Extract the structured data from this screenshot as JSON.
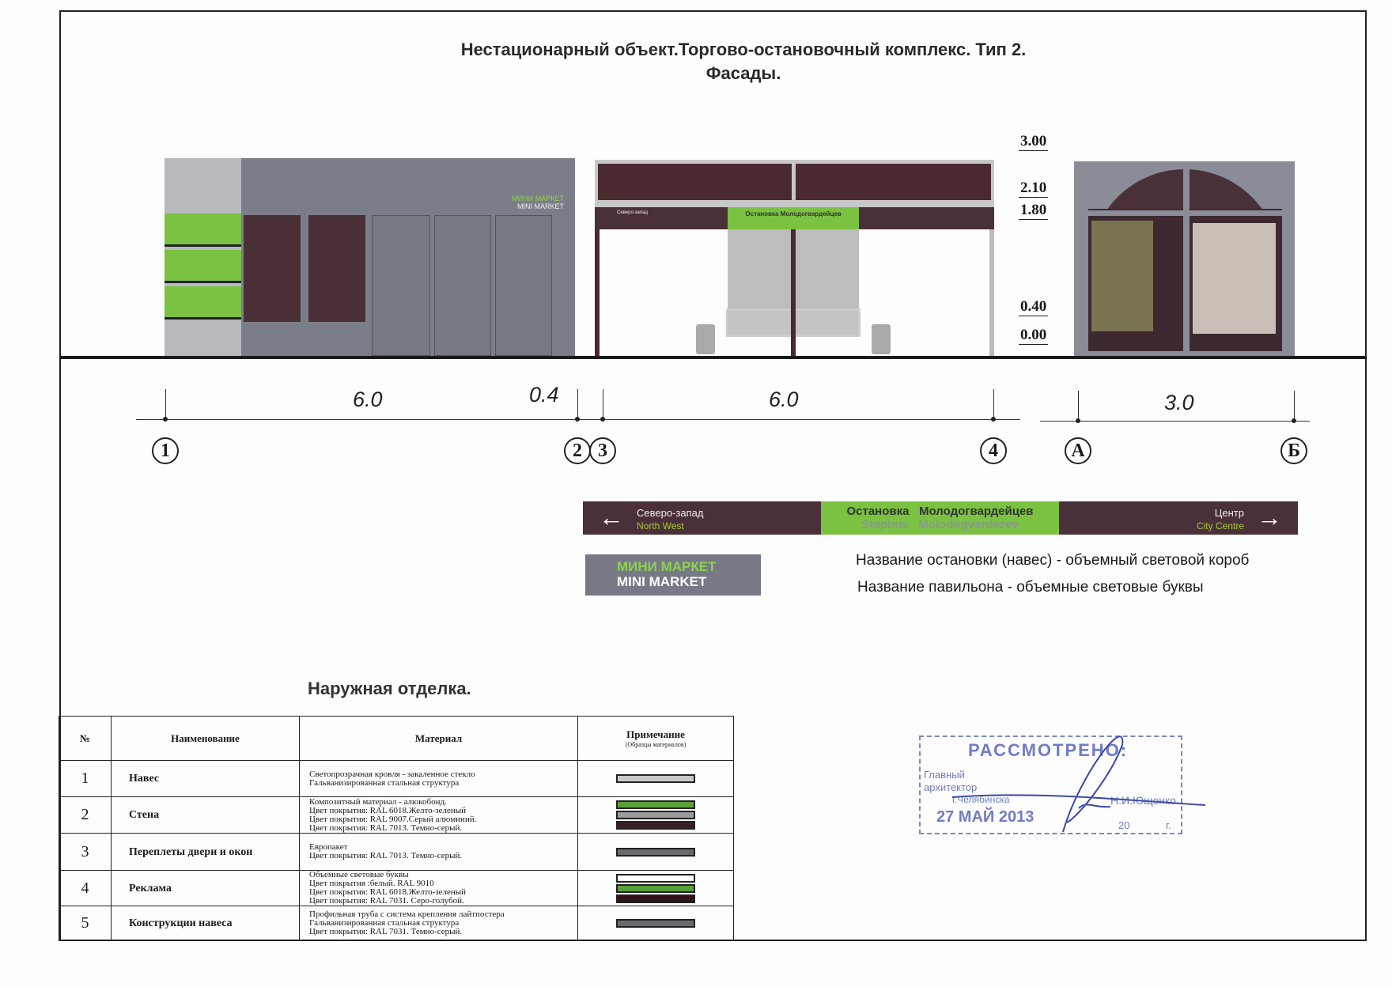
{
  "title": {
    "line1": "Нестационарный объект.Торгово-остановочный комплекс. Тип 2.",
    "line2": "Фасады."
  },
  "shop_sign": {
    "ru": "МИНИ МАРКЕТ",
    "en": "MINI MARKET"
  },
  "levels": [
    "3.00",
    "2.10",
    "1.80",
    "0.40",
    "0.00"
  ],
  "axes": {
    "dims": [
      "6.0",
      "0.4",
      "6.0",
      "3.0"
    ],
    "labels": [
      "1",
      "2",
      "3",
      "4",
      "А",
      "Б"
    ]
  },
  "stop_sign": {
    "left_ru": "Северо-запад",
    "left_en": "North West",
    "center_ru_1": "Остановка",
    "center_ru_2": "Молодогвардейцев",
    "center_en_1": "Stopbus",
    "center_en_2": "Molodogvardezev",
    "right_ru": "Центр",
    "right_en": "City Centre"
  },
  "notes": [
    "Название остановки (навес) - объемный световой короб",
    "Название  павильона - объемные световые буквы"
  ],
  "finish_title": "Наружная  отделка.",
  "table": {
    "headers": [
      "№",
      "Наименование",
      "Материал",
      "Примечание"
    ],
    "header_sub": "(Образцы материалов)",
    "rows": [
      {
        "n": "1",
        "name": "Навес",
        "material": [
          "Светопрозрачная кровля - закаленное стекло",
          "Гальванизированная стальная структура"
        ],
        "swatches": [
          "#c8c8c8"
        ]
      },
      {
        "n": "2",
        "name": "Стена",
        "material": [
          "Композитный материал - алюкобонд.",
          "Цвет  покрытия: RAL 6018.Желто-зеленый",
          "Цвет  покрытия: RAL 9007.Серый алюминий.",
          "Цвет  покрытия: RAL 7013. Темно-серый."
        ],
        "swatches": [
          "#5aa03c",
          "#9a9a9a",
          "#3a1f22"
        ]
      },
      {
        "n": "3",
        "name": "Переплеты двери и окон",
        "material": [
          "Европакет",
          "Цвет  покрытия: RAL 7013. Темно-серый."
        ],
        "swatches": [
          "#6a6a6e"
        ]
      },
      {
        "n": "4",
        "name": "Реклама",
        "material": [
          "Объемные световые  буквы",
          "Цвет  покрытия :белый.  RAL 9010",
          "Цвет  покрытия: RAL 6018.Желто-зеленый",
          "Цвет  покрытия: RAL 7031. Серо-голубой."
        ],
        "swatches": [
          "#ffffff",
          "#5aa03c",
          "#2e1416"
        ]
      },
      {
        "n": "5",
        "name": "Конструкции навеса",
        "material": [
          "Профильная труба с система крепления лайтпостера",
          "Гальванизированная стальная структура",
          "Цвет  покрытия: RAL 7031. Темно-серый."
        ],
        "swatches": [
          "#6a6a6e"
        ]
      }
    ]
  },
  "stamp": {
    "title": "РАССМОТРЕНО:",
    "role1": "Главный",
    "role2": "архитектор",
    "city": "г.Челябинска",
    "name": "Н.И.Ющенко",
    "date": "27 МАЙ 2013",
    "year_prefix": "20",
    "year_suffix": "г."
  },
  "colors": {
    "green": "#7cc242",
    "dark": "#4a3038",
    "wall": "#7b7e88",
    "stamp": "#6f7cc4"
  }
}
